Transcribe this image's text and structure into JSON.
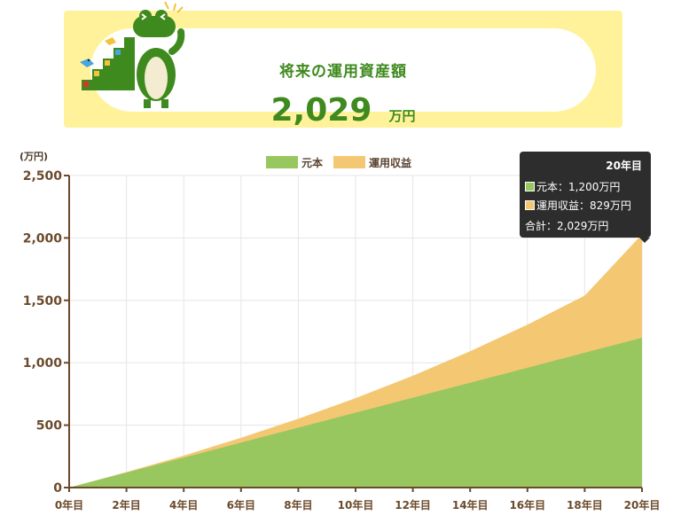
{
  "banner": {
    "title": "将来の運用資産額",
    "value": "2,029",
    "unit": "万円"
  },
  "colors": {
    "principal": "#98c760",
    "gain": "#f4c773",
    "banner_bg": "#fff29a",
    "accent_text": "#3f8a1e",
    "axis": "#6b4a2b"
  },
  "tooltip": {
    "title": "20年目",
    "principal_line": "元本：1,200万円",
    "gain_line": "運用収益：829万円",
    "total_line": "合計：2,029万円"
  },
  "chart_data": {
    "type": "area",
    "stacked": true,
    "unit_label": "(万円)",
    "x": [
      0,
      2,
      4,
      6,
      8,
      10,
      12,
      14,
      16,
      18,
      20
    ],
    "xticklabels": [
      "0年目",
      "2年目",
      "4年目",
      "6年目",
      "8年目",
      "10年目",
      "12年目",
      "14年目",
      "16年目",
      "18年目",
      "20年目"
    ],
    "ylim": [
      0,
      2500
    ],
    "yticks": [
      0,
      500,
      1000,
      1500,
      2000,
      2500
    ],
    "yticklabels": [
      "0",
      "500",
      "1,000",
      "1,500",
      "2,000",
      "2,500"
    ],
    "grid": true,
    "legend_position": "top-center",
    "series": [
      {
        "name": "元本",
        "values": [
          0,
          120,
          240,
          360,
          480,
          600,
          720,
          840,
          960,
          1080,
          1200
        ]
      },
      {
        "name": "運用収益",
        "values": [
          0,
          4,
          16,
          39,
          71,
          116,
          176,
          252,
          345,
          458,
          829
        ]
      }
    ]
  }
}
